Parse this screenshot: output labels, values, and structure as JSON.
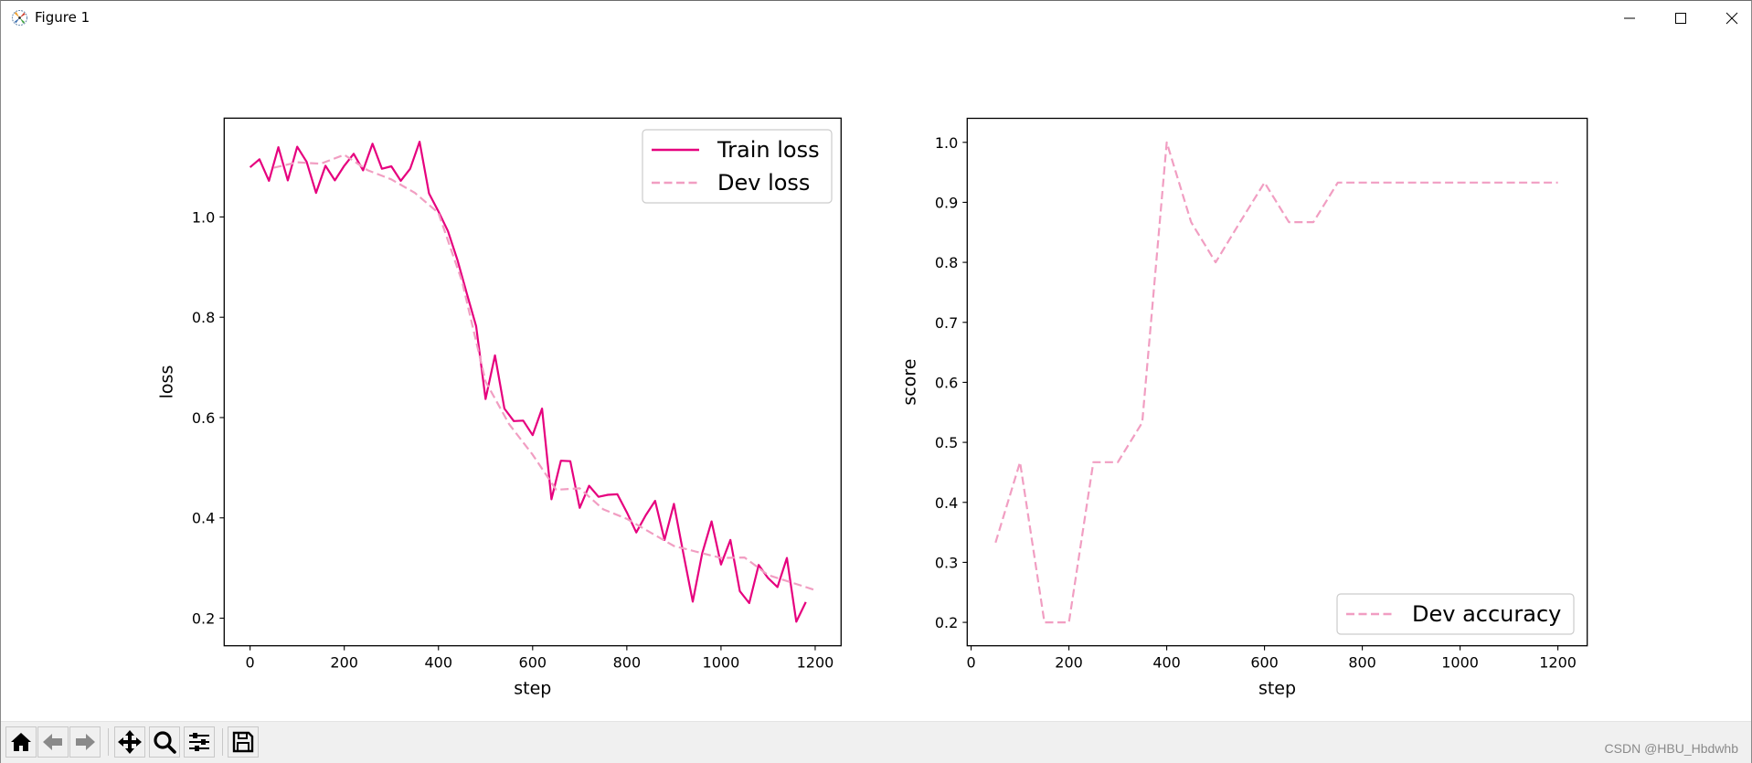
{
  "window": {
    "title": "Figure 1",
    "controls": {
      "minimize": "minimize-icon",
      "maximize": "maximize-icon",
      "close": "close-icon"
    }
  },
  "toolbar": {
    "buttons": [
      {
        "name": "home",
        "icon": "home-icon"
      },
      {
        "name": "back",
        "icon": "arrow-left-icon"
      },
      {
        "name": "forward",
        "icon": "arrow-right-icon"
      },
      {
        "name": "pan",
        "icon": "move-icon"
      },
      {
        "name": "zoom",
        "icon": "magnifier-icon"
      },
      {
        "name": "configure-subplots",
        "icon": "sliders-icon"
      },
      {
        "name": "save",
        "icon": "floppy-disk-icon"
      }
    ],
    "watermark": "CSDN @HBU_Hbdwhb"
  },
  "colors": {
    "train": "#e6007e",
    "dev": "#f19ec2",
    "axis": "#000000",
    "legend_border": "#cccccc"
  },
  "chart_data": [
    {
      "type": "line",
      "title": "",
      "xlabel": "step",
      "ylabel": "loss",
      "xlim": [
        -55,
        1255
      ],
      "ylim": [
        0.145,
        1.197
      ],
      "xticks": [
        0,
        200,
        400,
        600,
        800,
        1000,
        1200
      ],
      "xtick_labels": [
        "0",
        "200",
        "400",
        "600",
        "800",
        "1000",
        "1200"
      ],
      "yticks": [
        0.2,
        0.4,
        0.6,
        0.8,
        1.0
      ],
      "ytick_labels": [
        "0.2",
        "0.4",
        "0.6",
        "0.8",
        "1.0"
      ],
      "grid": false,
      "legend_position": "upper right",
      "series": [
        {
          "name": "Train loss",
          "style": "solid",
          "color": "#e6007e",
          "x": [
            0,
            20,
            40,
            60,
            80,
            100,
            120,
            140,
            160,
            180,
            200,
            220,
            240,
            260,
            280,
            300,
            320,
            340,
            360,
            380,
            400,
            420,
            440,
            460,
            480,
            500,
            520,
            540,
            560,
            580,
            600,
            620,
            640,
            660,
            680,
            700,
            720,
            740,
            760,
            780,
            800,
            820,
            840,
            860,
            880,
            900,
            920,
            940,
            960,
            980,
            1000,
            1020,
            1040,
            1060,
            1080,
            1100,
            1120,
            1140,
            1160,
            1180
          ],
          "values": [
            1.099,
            1.115,
            1.072,
            1.139,
            1.073,
            1.14,
            1.11,
            1.048,
            1.102,
            1.073,
            1.102,
            1.126,
            1.093,
            1.146,
            1.096,
            1.101,
            1.072,
            1.096,
            1.15,
            1.047,
            1.011,
            0.972,
            0.915,
            0.848,
            0.782,
            0.637,
            0.724,
            0.618,
            0.593,
            0.594,
            0.565,
            0.618,
            0.437,
            0.514,
            0.513,
            0.42,
            0.464,
            0.442,
            0.446,
            0.447,
            0.411,
            0.371,
            0.405,
            0.434,
            0.356,
            0.428,
            0.329,
            0.233,
            0.329,
            0.393,
            0.307,
            0.356,
            0.254,
            0.23,
            0.306,
            0.28,
            0.262,
            0.32,
            0.193,
            0.232
          ]
        },
        {
          "name": "Dev loss",
          "style": "dashed",
          "color": "#f19ec2",
          "x": [
            50,
            100,
            150,
            200,
            250,
            300,
            350,
            400,
            450,
            500,
            550,
            600,
            650,
            700,
            750,
            800,
            850,
            900,
            950,
            1000,
            1050,
            1100,
            1150,
            1200
          ],
          "values": [
            1.098,
            1.109,
            1.106,
            1.124,
            1.093,
            1.075,
            1.048,
            1.008,
            0.872,
            0.672,
            0.587,
            0.526,
            0.456,
            0.459,
            0.417,
            0.398,
            0.371,
            0.344,
            0.332,
            0.32,
            0.321,
            0.286,
            0.271,
            0.256
          ]
        }
      ]
    },
    {
      "type": "line",
      "title": "",
      "xlabel": "step",
      "ylabel": "score",
      "xlim": [
        -8,
        1260
      ],
      "ylim": [
        0.161,
        1.04
      ],
      "xticks": [
        0,
        200,
        400,
        600,
        800,
        1000,
        1200
      ],
      "xtick_labels": [
        "0",
        "200",
        "400",
        "600",
        "800",
        "1000",
        "1200"
      ],
      "yticks": [
        0.2,
        0.3,
        0.4,
        0.5,
        0.6,
        0.7,
        0.8,
        0.9,
        1.0
      ],
      "ytick_labels": [
        "0.2",
        "0.3",
        "0.4",
        "0.5",
        "0.6",
        "0.7",
        "0.8",
        "0.9",
        "1.0"
      ],
      "grid": false,
      "legend_position": "lower right",
      "series": [
        {
          "name": "Dev accuracy",
          "style": "dashed",
          "color": "#f19ec2",
          "x": [
            50,
            100,
            150,
            200,
            250,
            300,
            350,
            400,
            450,
            500,
            550,
            600,
            650,
            700,
            750,
            800,
            850,
            900,
            950,
            1000,
            1050,
            1100,
            1150,
            1200
          ],
          "values": [
            0.333,
            0.467,
            0.2,
            0.2,
            0.467,
            0.467,
            0.533,
            1.0,
            0.867,
            0.8,
            0.867,
            0.933,
            0.867,
            0.867,
            0.933,
            0.933,
            0.933,
            0.933,
            0.933,
            0.933,
            0.933,
            0.933,
            0.933,
            0.933
          ]
        }
      ]
    }
  ]
}
